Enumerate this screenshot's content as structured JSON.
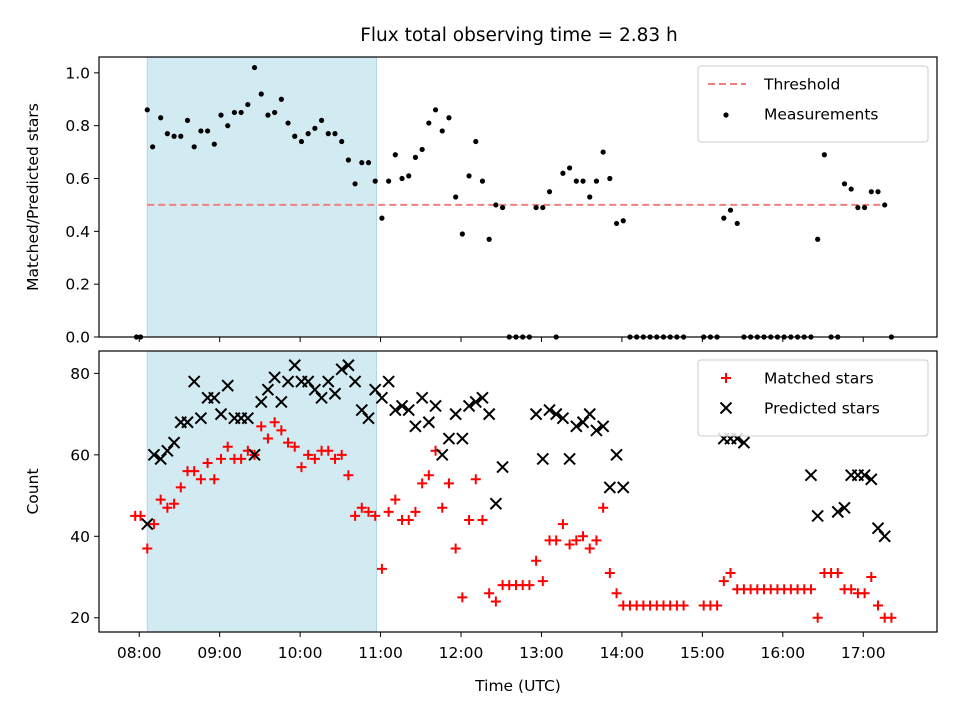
{
  "title": "Flux total observing time = 2.83 h",
  "colors": {
    "threshold": "#f08080",
    "measurement": "#000000",
    "matched": "#ff0000",
    "predicted": "#000000",
    "shade": "#add8e6"
  },
  "chart_data": [
    {
      "type": "scatter",
      "title": "Flux total observing time = 2.83 h",
      "xlabel": "",
      "ylabel": "Matched/Predicted stars",
      "xlim": [
        "07:30",
        "17:55"
      ],
      "ylim": [
        0,
        1.06
      ],
      "y_ticks": [
        0.0,
        0.2,
        0.4,
        0.6,
        0.8,
        1.0
      ],
      "y_tick_labels": [
        "0.0",
        "0.2",
        "0.4",
        "0.6",
        "0.8",
        "1.0"
      ],
      "grid": false,
      "legend_position": "top-right",
      "shaded_interval": [
        "08:06",
        "10:57"
      ],
      "threshold": {
        "name": "Threshold",
        "value": 0.5,
        "x_range": [
          "08:06",
          "17:15"
        ],
        "style": "dashed"
      },
      "series": [
        {
          "name": "Measurements",
          "marker": "dot",
          "x": [
            "07:58",
            "08:01",
            "08:06",
            "08:10",
            "08:16",
            "08:21",
            "08:26",
            "08:31",
            "08:36",
            "08:41",
            "08:46",
            "08:51",
            "08:56",
            "09:01",
            "09:06",
            "09:11",
            "09:16",
            "09:21",
            "09:26",
            "09:31",
            "09:36",
            "09:41",
            "09:46",
            "09:51",
            "09:56",
            "10:01",
            "10:06",
            "10:11",
            "10:16",
            "10:21",
            "10:26",
            "10:31",
            "10:36",
            "10:41",
            "10:46",
            "10:51",
            "10:56",
            "11:01",
            "11:06",
            "11:11",
            "11:16",
            "11:21",
            "11:26",
            "11:31",
            "11:36",
            "11:41",
            "11:46",
            "11:51",
            "11:56",
            "12:01",
            "12:06",
            "12:11",
            "12:16",
            "12:21",
            "12:26",
            "12:31",
            "12:36",
            "12:41",
            "12:46",
            "12:51",
            "12:56",
            "13:01",
            "13:06",
            "13:11",
            "13:16",
            "13:21",
            "13:26",
            "13:31",
            "13:36",
            "13:41",
            "13:46",
            "13:51",
            "13:56",
            "14:01",
            "14:06",
            "14:11",
            "14:16",
            "14:21",
            "14:26",
            "14:31",
            "14:36",
            "14:41",
            "14:46",
            "15:01",
            "15:06",
            "15:11",
            "15:16",
            "15:21",
            "15:26",
            "15:31",
            "15:36",
            "15:41",
            "15:46",
            "15:51",
            "15:56",
            "16:01",
            "16:06",
            "16:11",
            "16:16",
            "16:21",
            "16:26",
            "16:31",
            "16:36",
            "16:41",
            "16:46",
            "16:51",
            "16:56",
            "17:01",
            "17:06",
            "17:11",
            "17:16",
            "17:21"
          ],
          "y": [
            0.0,
            0.0,
            0.86,
            0.72,
            0.83,
            0.77,
            0.76,
            0.76,
            0.82,
            0.72,
            0.78,
            0.78,
            0.73,
            0.84,
            0.8,
            0.85,
            0.85,
            0.88,
            1.02,
            0.92,
            0.84,
            0.85,
            0.9,
            0.81,
            0.76,
            0.74,
            0.77,
            0.79,
            0.82,
            0.77,
            0.77,
            0.74,
            0.67,
            0.58,
            0.66,
            0.66,
            0.59,
            0.45,
            0.59,
            0.69,
            0.6,
            0.61,
            0.68,
            0.71,
            0.81,
            0.86,
            0.78,
            0.83,
            0.53,
            0.39,
            0.61,
            0.74,
            0.59,
            0.37,
            0.5,
            0.49,
            0.0,
            0.0,
            0.0,
            0.0,
            0.49,
            0.49,
            0.55,
            0.0,
            0.62,
            0.64,
            0.59,
            0.59,
            0.53,
            0.59,
            0.7,
            0.6,
            0.43,
            0.44,
            0.0,
            0.0,
            0.0,
            0.0,
            0.0,
            0.0,
            0.0,
            0.0,
            0.0,
            0.0,
            0.0,
            0.0,
            0.45,
            0.48,
            0.43,
            0.0,
            0.0,
            0.0,
            0.0,
            0.0,
            0.0,
            0.0,
            0.0,
            0.0,
            0.0,
            0.0,
            0.37,
            0.69,
            0.0,
            0.0,
            0.58,
            0.56,
            0.49,
            0.49,
            0.55,
            0.55,
            0.5,
            0.0
          ]
        }
      ]
    },
    {
      "type": "scatter",
      "xlabel": "Time (UTC)",
      "ylabel": "Count",
      "xlim": [
        "07:30",
        "17:55"
      ],
      "ylim": [
        16.5,
        85.5
      ],
      "x_ticks": [
        "08:00",
        "09:00",
        "10:00",
        "11:00",
        "12:00",
        "13:00",
        "14:00",
        "15:00",
        "16:00",
        "17:00"
      ],
      "y_ticks": [
        20,
        40,
        60,
        80
      ],
      "y_tick_labels": [
        "20",
        "40",
        "60",
        "80"
      ],
      "grid": false,
      "legend_position": "top-right",
      "shaded_interval": [
        "08:06",
        "10:57"
      ],
      "series": [
        {
          "name": "Matched stars",
          "marker": "plus",
          "x": [
            "07:57",
            "08:01",
            "08:06",
            "08:11",
            "08:16",
            "08:21",
            "08:26",
            "08:31",
            "08:36",
            "08:41",
            "08:46",
            "08:51",
            "08:56",
            "09:01",
            "09:06",
            "09:11",
            "09:16",
            "09:21",
            "09:26",
            "09:31",
            "09:36",
            "09:41",
            "09:46",
            "09:51",
            "09:56",
            "10:01",
            "10:06",
            "10:11",
            "10:16",
            "10:21",
            "10:26",
            "10:31",
            "10:36",
            "10:41",
            "10:46",
            "10:51",
            "10:56",
            "11:01",
            "11:06",
            "11:11",
            "11:16",
            "11:21",
            "11:26",
            "11:31",
            "11:36",
            "11:41",
            "11:46",
            "11:51",
            "11:56",
            "12:01",
            "12:06",
            "12:11",
            "12:16",
            "12:21",
            "12:26",
            "12:31",
            "12:36",
            "12:41",
            "12:46",
            "12:51",
            "12:56",
            "13:01",
            "13:06",
            "13:11",
            "13:16",
            "13:21",
            "13:26",
            "13:31",
            "13:36",
            "13:41",
            "13:46",
            "13:51",
            "13:56",
            "14:01",
            "14:06",
            "14:11",
            "14:16",
            "14:21",
            "14:26",
            "14:31",
            "14:36",
            "14:41",
            "14:46",
            "15:01",
            "15:06",
            "15:11",
            "15:16",
            "15:21",
            "15:26",
            "15:31",
            "15:36",
            "15:41",
            "15:46",
            "15:51",
            "15:56",
            "16:01",
            "16:06",
            "16:11",
            "16:16",
            "16:21",
            "16:26",
            "16:31",
            "16:36",
            "16:41",
            "16:46",
            "16:51",
            "16:56",
            "17:01",
            "17:06",
            "17:11",
            "17:16",
            "17:21"
          ],
          "y": [
            45,
            45,
            37,
            43,
            49,
            47,
            48,
            52,
            56,
            56,
            54,
            58,
            54,
            59,
            62,
            59,
            59,
            61,
            60,
            67,
            64,
            68,
            66,
            63,
            62,
            57,
            60,
            59,
            61,
            61,
            59,
            60,
            55,
            45,
            47,
            46,
            45,
            32,
            46,
            49,
            44,
            44,
            46,
            53,
            55,
            61,
            47,
            53,
            37,
            25,
            44,
            54,
            44,
            26,
            24,
            28,
            28,
            28,
            28,
            28,
            34,
            29,
            39,
            39,
            43,
            38,
            39,
            40,
            37,
            39,
            47,
            31,
            26,
            23,
            23,
            23,
            23,
            23,
            23,
            23,
            23,
            23,
            23,
            23,
            23,
            23,
            29,
            31,
            27,
            27,
            27,
            27,
            27,
            27,
            27,
            27,
            27,
            27,
            27,
            27,
            20,
            31,
            31,
            31,
            27,
            27,
            26,
            26,
            30,
            23,
            20,
            20
          ]
        },
        {
          "name": "Predicted stars",
          "marker": "x",
          "x": [
            "08:06",
            "08:11",
            "08:16",
            "08:21",
            "08:26",
            "08:31",
            "08:36",
            "08:41",
            "08:46",
            "08:51",
            "08:56",
            "09:01",
            "09:06",
            "09:11",
            "09:16",
            "09:21",
            "09:26",
            "09:31",
            "09:36",
            "09:41",
            "09:46",
            "09:51",
            "09:56",
            "10:01",
            "10:06",
            "10:11",
            "10:16",
            "10:21",
            "10:26",
            "10:31",
            "10:36",
            "10:41",
            "10:46",
            "10:51",
            "10:56",
            "11:01",
            "11:06",
            "11:11",
            "11:16",
            "11:21",
            "11:26",
            "11:31",
            "11:36",
            "11:41",
            "11:46",
            "11:51",
            "11:56",
            "12:01",
            "12:06",
            "12:11",
            "12:16",
            "12:21",
            "12:26",
            "12:31",
            "12:56",
            "13:01",
            "13:06",
            "13:11",
            "13:16",
            "13:21",
            "13:26",
            "13:31",
            "13:36",
            "13:41",
            "13:46",
            "13:51",
            "13:56",
            "14:01",
            "15:16",
            "15:21",
            "15:26",
            "15:31",
            "16:21",
            "16:26",
            "16:41",
            "16:46",
            "16:51",
            "16:56",
            "17:01",
            "17:06",
            "17:11",
            "17:16"
          ],
          "y": [
            43,
            60,
            59,
            61,
            63,
            68,
            68,
            78,
            69,
            74,
            74,
            70,
            77,
            69,
            69,
            69,
            60,
            73,
            76,
            79,
            73,
            78,
            82,
            78,
            78,
            76,
            74,
            78,
            75,
            81,
            82,
            78,
            71,
            69,
            76,
            74,
            78,
            71,
            72,
            71,
            67,
            74,
            68,
            72,
            60,
            64,
            70,
            64,
            72,
            73,
            74,
            70,
            48,
            57,
            70,
            59,
            71,
            70,
            69,
            59,
            67,
            68,
            70,
            66,
            67,
            52,
            60,
            52,
            64,
            64,
            64,
            63,
            55,
            45,
            46,
            47,
            55,
            55,
            55,
            54,
            42,
            40
          ]
        }
      ]
    }
  ]
}
